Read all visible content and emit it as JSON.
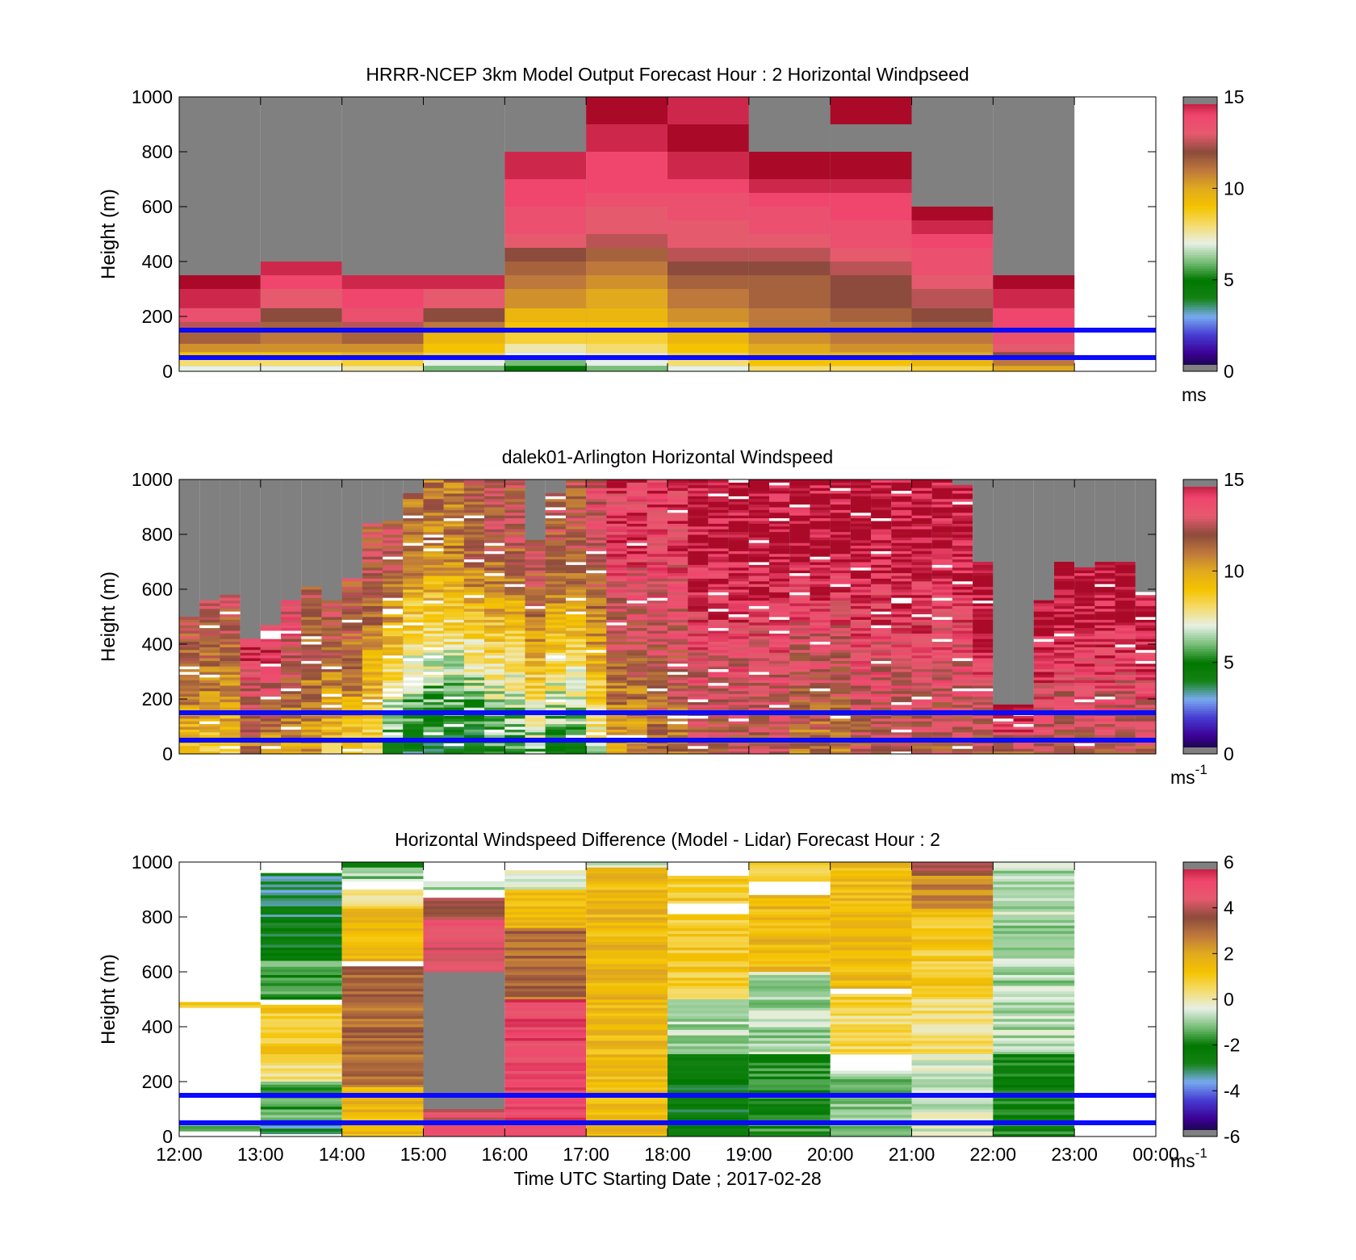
{
  "chart_data": [
    {
      "type": "heatmap",
      "title": "HRRR-NCEP 3km Model Output   Forecast Hour : 2 Horizontal Windpseed",
      "xlabel": "",
      "ylabel": "Height (m)",
      "xlim": [
        12,
        24
      ],
      "ylim": [
        0,
        1000
      ],
      "x_ticks": [
        12,
        13,
        14,
        15,
        16,
        17,
        18,
        19,
        20,
        21,
        22,
        23,
        24
      ],
      "y_ticks": [
        0,
        200,
        400,
        600,
        800,
        1000
      ],
      "y_tick_labels": [
        "0",
        "200",
        "400",
        "600",
        "800",
        "1000"
      ],
      "colorbar": {
        "min": 0,
        "max": 15,
        "ticks": [
          0,
          5,
          10,
          15
        ],
        "tick_labels": [
          "0",
          "5",
          "10",
          "15"
        ],
        "unit": "ms",
        "unit_superscript": "",
        "palette": "windspeed"
      },
      "reference_lines_m": [
        150,
        50
      ],
      "grid": false,
      "columns": [
        {
          "x": 12,
          "heights": [
            20,
            50,
            70,
            100,
            140,
            180,
            230,
            300,
            350
          ],
          "values": [
            7.0,
            8.0,
            9.0,
            10.5,
            11.5,
            12.5,
            13.5,
            14.5,
            15.0
          ]
        },
        {
          "x": 13,
          "heights": [
            20,
            50,
            70,
            100,
            140,
            180,
            230,
            300,
            350,
            400
          ],
          "values": [
            7.0,
            8.0,
            9.0,
            10.5,
            11.0,
            11.5,
            12.0,
            13.0,
            14.0,
            14.5
          ]
        },
        {
          "x": 14,
          "heights": [
            20,
            50,
            70,
            100,
            140,
            180,
            230,
            300,
            350
          ],
          "values": [
            7.5,
            8.5,
            9.5,
            10.5,
            11.5,
            12.5,
            13.5,
            14.0,
            14.5
          ]
        },
        {
          "x": 15,
          "heights": [
            20,
            50,
            70,
            100,
            140,
            180,
            230,
            300,
            350
          ],
          "values": [
            6.0,
            7.0,
            8.5,
            9.0,
            9.5,
            11.0,
            12.0,
            13.0,
            14.5
          ]
        },
        {
          "x": 16,
          "heights": [
            20,
            50,
            70,
            100,
            140,
            180,
            230,
            300,
            350,
            400,
            450,
            500,
            550,
            600,
            650,
            700,
            800
          ],
          "values": [
            5.0,
            6.0,
            7.0,
            7.5,
            8.5,
            9.0,
            9.5,
            10.5,
            11.0,
            11.5,
            12.0,
            13.0,
            13.5,
            13.5,
            14.0,
            14.0,
            14.5
          ]
        },
        {
          "x": 17,
          "heights": [
            20,
            50,
            70,
            100,
            140,
            180,
            230,
            300,
            350,
            400,
            450,
            500,
            550,
            600,
            650,
            700,
            800,
            900,
            1000
          ],
          "values": [
            6.0,
            7.0,
            7.5,
            8.0,
            8.5,
            9.0,
            9.5,
            10.0,
            10.5,
            11.0,
            11.5,
            12.5,
            13.0,
            13.0,
            13.5,
            14.0,
            14.0,
            14.5,
            15.0
          ]
        },
        {
          "x": 18,
          "heights": [
            20,
            50,
            70,
            100,
            140,
            180,
            230,
            300,
            350,
            400,
            450,
            500,
            550,
            600,
            650,
            700,
            800,
            900,
            1000
          ],
          "values": [
            7.0,
            8.0,
            8.5,
            9.0,
            9.5,
            10.0,
            10.5,
            11.0,
            11.5,
            12.0,
            12.5,
            13.0,
            13.0,
            13.5,
            13.5,
            14.0,
            14.5,
            15.0,
            14.5
          ]
        },
        {
          "x": 19,
          "heights": [
            20,
            50,
            70,
            100,
            140,
            180,
            230,
            300,
            350,
            400,
            450,
            500,
            550,
            600,
            650,
            700,
            800
          ],
          "values": [
            8.0,
            9.0,
            9.5,
            10.0,
            10.5,
            11.0,
            11.0,
            11.5,
            11.5,
            12.0,
            12.5,
            13.0,
            13.5,
            13.5,
            14.0,
            14.5,
            15.0
          ]
        },
        {
          "x": 20,
          "heights": [
            20,
            50,
            70,
            100,
            140,
            180,
            230,
            300,
            350,
            400,
            450,
            500,
            550,
            600,
            650,
            700,
            800,
            900,
            1000
          ],
          "values": [
            8.0,
            9.0,
            9.5,
            10.5,
            11.0,
            11.0,
            11.5,
            12.0,
            12.0,
            12.5,
            13.0,
            13.5,
            13.5,
            14.0,
            14.0,
            14.5,
            15.0,
            null,
            15.0
          ]
        },
        {
          "x": 21,
          "heights": [
            20,
            50,
            70,
            100,
            140,
            180,
            230,
            300,
            350,
            400,
            450,
            500,
            550,
            600
          ],
          "values": [
            8.5,
            9.5,
            10.0,
            10.5,
            11.0,
            11.5,
            12.0,
            12.5,
            13.0,
            13.5,
            13.5,
            14.0,
            14.5,
            15.0
          ]
        },
        {
          "x": 22,
          "heights": [
            20,
            50,
            70,
            100,
            140,
            180,
            230,
            300,
            350
          ],
          "values": [
            10.0,
            11.0,
            12.0,
            13.0,
            13.5,
            14.0,
            14.0,
            14.5,
            15.0
          ]
        }
      ]
    },
    {
      "type": "heatmap",
      "title": "dalek01-Arlington  Horizontal Windspeed",
      "xlabel": "",
      "ylabel": "Height (m)",
      "xlim": [
        12,
        24
      ],
      "ylim": [
        0,
        1000
      ],
      "x_ticks": [
        12,
        13,
        14,
        15,
        16,
        17,
        18,
        19,
        20,
        21,
        22,
        23,
        24
      ],
      "y_ticks": [
        0,
        200,
        400,
        600,
        800,
        1000
      ],
      "y_tick_labels": [
        "0",
        "200",
        "400",
        "600",
        "800",
        "1000"
      ],
      "colorbar": {
        "min": 0,
        "max": 15,
        "ticks": [
          0,
          5,
          10,
          15
        ],
        "tick_labels": [
          "0",
          "5",
          "10",
          "15"
        ],
        "unit": "ms",
        "unit_superscript": "-1",
        "palette": "windspeed"
      },
      "reference_lines_m": [
        150,
        50
      ],
      "grid": false,
      "column_width_h": 0.25,
      "columns": [
        {
          "x": 12.0,
          "top": 500,
          "low": 9,
          "high": 12
        },
        {
          "x": 12.25,
          "top": 560,
          "low": 9,
          "high": 12
        },
        {
          "x": 12.5,
          "top": 580,
          "low": 9,
          "high": 12
        },
        {
          "x": 12.75,
          "top": 420,
          "low": 11,
          "high": 14
        },
        {
          "x": 13.0,
          "top": 470,
          "low": 10,
          "high": 14
        },
        {
          "x": 13.25,
          "top": 560,
          "low": 10,
          "high": 13
        },
        {
          "x": 13.5,
          "top": 610,
          "low": 10,
          "high": 12
        },
        {
          "x": 13.75,
          "top": 560,
          "low": 9,
          "high": 12
        },
        {
          "x": 14.0,
          "top": 640,
          "low": 9,
          "high": 12
        },
        {
          "x": 14.25,
          "top": 840,
          "low": 8,
          "high": 12
        },
        {
          "x": 14.5,
          "top": 850,
          "low": 5,
          "high": 12
        },
        {
          "x": 14.75,
          "top": 950,
          "low": 4,
          "high": 11
        },
        {
          "x": 15.0,
          "top": 1000,
          "low": 4,
          "high": 11
        },
        {
          "x": 15.25,
          "top": 1000,
          "low": 4,
          "high": 11
        },
        {
          "x": 15.5,
          "top": 1000,
          "low": 4,
          "high": 12
        },
        {
          "x": 15.75,
          "top": 1000,
          "low": 5,
          "high": 12
        },
        {
          "x": 16.0,
          "top": 1000,
          "low": 5,
          "high": 12
        },
        {
          "x": 16.25,
          "top": 780,
          "low": 6,
          "high": 12
        },
        {
          "x": 16.5,
          "top": 950,
          "low": 5,
          "high": 12
        },
        {
          "x": 16.75,
          "top": 1000,
          "low": 5,
          "high": 12
        },
        {
          "x": 17.0,
          "top": 1000,
          "low": 7,
          "high": 13
        },
        {
          "x": 17.25,
          "top": 1000,
          "low": 10,
          "high": 14
        },
        {
          "x": 17.5,
          "top": 1000,
          "low": 10,
          "high": 14
        },
        {
          "x": 17.75,
          "top": 1000,
          "low": 11,
          "high": 14
        },
        {
          "x": 18.0,
          "top": 1000,
          "low": 11,
          "high": 14
        },
        {
          "x": 18.25,
          "top": 1000,
          "low": 12,
          "high": 15
        },
        {
          "x": 18.5,
          "top": 1000,
          "low": 12,
          "high": 15
        },
        {
          "x": 18.75,
          "top": 1000,
          "low": 12,
          "high": 15
        },
        {
          "x": 19.0,
          "top": 1000,
          "low": 12,
          "high": 15
        },
        {
          "x": 19.25,
          "top": 1000,
          "low": 12,
          "high": 15
        },
        {
          "x": 19.5,
          "top": 1000,
          "low": 11,
          "high": 15
        },
        {
          "x": 19.75,
          "top": 1000,
          "low": 11,
          "high": 15
        },
        {
          "x": 20.0,
          "top": 1000,
          "low": 11,
          "high": 15
        },
        {
          "x": 20.25,
          "top": 1000,
          "low": 12,
          "high": 15
        },
        {
          "x": 20.5,
          "top": 1000,
          "low": 12,
          "high": 15
        },
        {
          "x": 20.75,
          "top": 1000,
          "low": 12,
          "high": 15
        },
        {
          "x": 21.0,
          "top": 1000,
          "low": 12,
          "high": 15
        },
        {
          "x": 21.25,
          "top": 1000,
          "low": 12,
          "high": 15
        },
        {
          "x": 21.5,
          "top": 980,
          "low": 12,
          "high": 15
        },
        {
          "x": 21.75,
          "top": 700,
          "low": 12,
          "high": 15
        },
        {
          "x": 22.0,
          "top": 180,
          "low": 12,
          "high": 15
        },
        {
          "x": 22.25,
          "top": 180,
          "low": 12,
          "high": 15
        },
        {
          "x": 22.5,
          "top": 560,
          "low": 12,
          "high": 15
        },
        {
          "x": 22.75,
          "top": 700,
          "low": 12,
          "high": 15
        },
        {
          "x": 23.0,
          "top": 680,
          "low": 12,
          "high": 15
        },
        {
          "x": 23.25,
          "top": 700,
          "low": 12,
          "high": 15
        },
        {
          "x": 23.5,
          "top": 700,
          "low": 12,
          "high": 15
        },
        {
          "x": 23.75,
          "top": 590,
          "low": 12,
          "high": 15
        }
      ]
    },
    {
      "type": "heatmap",
      "title": "Horizontal Windspeed Difference (Model - Lidar) Forecast Hour : 2",
      "xlabel": "Time UTC  Starting Date ; 2017-02-28",
      "ylabel": "Height (m)",
      "xlim": [
        12,
        24
      ],
      "ylim": [
        0,
        1000
      ],
      "x_ticks": [
        12,
        13,
        14,
        15,
        16,
        17,
        18,
        19,
        20,
        21,
        22,
        23,
        24
      ],
      "x_tick_labels": [
        "12:00",
        "13:00",
        "14:00",
        "15:00",
        "16:00",
        "17:00",
        "18:00",
        "19:00",
        "20:00",
        "21:00",
        "22:00",
        "23:00",
        "00:00"
      ],
      "y_ticks": [
        0,
        200,
        400,
        600,
        800,
        1000
      ],
      "y_tick_labels": [
        "0",
        "200",
        "400",
        "600",
        "800",
        "1000"
      ],
      "colorbar": {
        "min": -6,
        "max": 6,
        "ticks": [
          -6,
          -4,
          -2,
          0,
          2,
          4,
          6
        ],
        "tick_labels": [
          "-6",
          "-4",
          "-2",
          "0",
          "2",
          "4",
          "6"
        ],
        "unit": "ms",
        "unit_superscript": "-1",
        "palette": "difference"
      },
      "reference_lines_m": [
        150,
        50
      ],
      "grid": false,
      "columns": [
        {
          "x": 12,
          "bands": [
            [
              470,
              490,
              1.0
            ],
            [
              20,
              40,
              -1.5
            ]
          ]
        },
        {
          "x": 13,
          "bands": [
            [
              800,
              960,
              -3.0
            ],
            [
              640,
              800,
              -2.5
            ],
            [
              500,
              640,
              -1.5
            ],
            [
              300,
              480,
              1.0
            ],
            [
              200,
              300,
              0.5
            ],
            [
              60,
              200,
              -1.5
            ],
            [
              10,
              60,
              -3.0
            ]
          ]
        },
        {
          "x": 14,
          "bands": [
            [
              980,
              1000,
              -2.0
            ],
            [
              930,
              980,
              -1.0
            ],
            [
              830,
              900,
              0.5
            ],
            [
              640,
              830,
              1.5
            ],
            [
              420,
              620,
              3.0
            ],
            [
              180,
              420,
              3.0
            ],
            [
              0,
              180,
              1.5
            ]
          ]
        },
        {
          "x": 15,
          "bands": [
            [
              900,
              930,
              -1.0
            ],
            [
              800,
              870,
              3.5
            ],
            [
              600,
              800,
              4.5
            ],
            [
              0,
              100,
              4.5
            ]
          ]
        },
        {
          "x": 16,
          "bands": [
            [
              900,
              970,
              -0.5
            ],
            [
              760,
              900,
              1.5
            ],
            [
              500,
              760,
              3.0
            ],
            [
              0,
              500,
              5.0
            ]
          ]
        },
        {
          "x": 17,
          "bands": [
            [
              980,
              1000,
              -0.3
            ],
            [
              0,
              980,
              1.5
            ]
          ]
        },
        {
          "x": 18,
          "bands": [
            [
              850,
              950,
              1.0
            ],
            [
              500,
              810,
              1.0
            ],
            [
              300,
              500,
              -0.8
            ],
            [
              0,
              300,
              -2.5
            ]
          ]
        },
        {
          "x": 19,
          "bands": [
            [
              930,
              1000,
              0.5
            ],
            [
              600,
              880,
              1.5
            ],
            [
              300,
              600,
              -0.8
            ],
            [
              0,
              300,
              -1.8
            ]
          ]
        },
        {
          "x": 20,
          "bands": [
            [
              540,
              1000,
              1.5
            ],
            [
              440,
              520,
              1.0
            ],
            [
              300,
              440,
              0.5
            ],
            [
              0,
              240,
              -1.0
            ]
          ]
        },
        {
          "x": 21,
          "bands": [
            [
              950,
              1000,
              3.5
            ],
            [
              830,
              950,
              2.5
            ],
            [
              500,
              830,
              1.0
            ],
            [
              300,
              500,
              0.3
            ],
            [
              0,
              300,
              -0.5
            ]
          ]
        },
        {
          "x": 22,
          "bands": [
            [
              300,
              1000,
              -0.8
            ],
            [
              0,
              300,
              -2.0
            ]
          ]
        }
      ]
    }
  ]
}
